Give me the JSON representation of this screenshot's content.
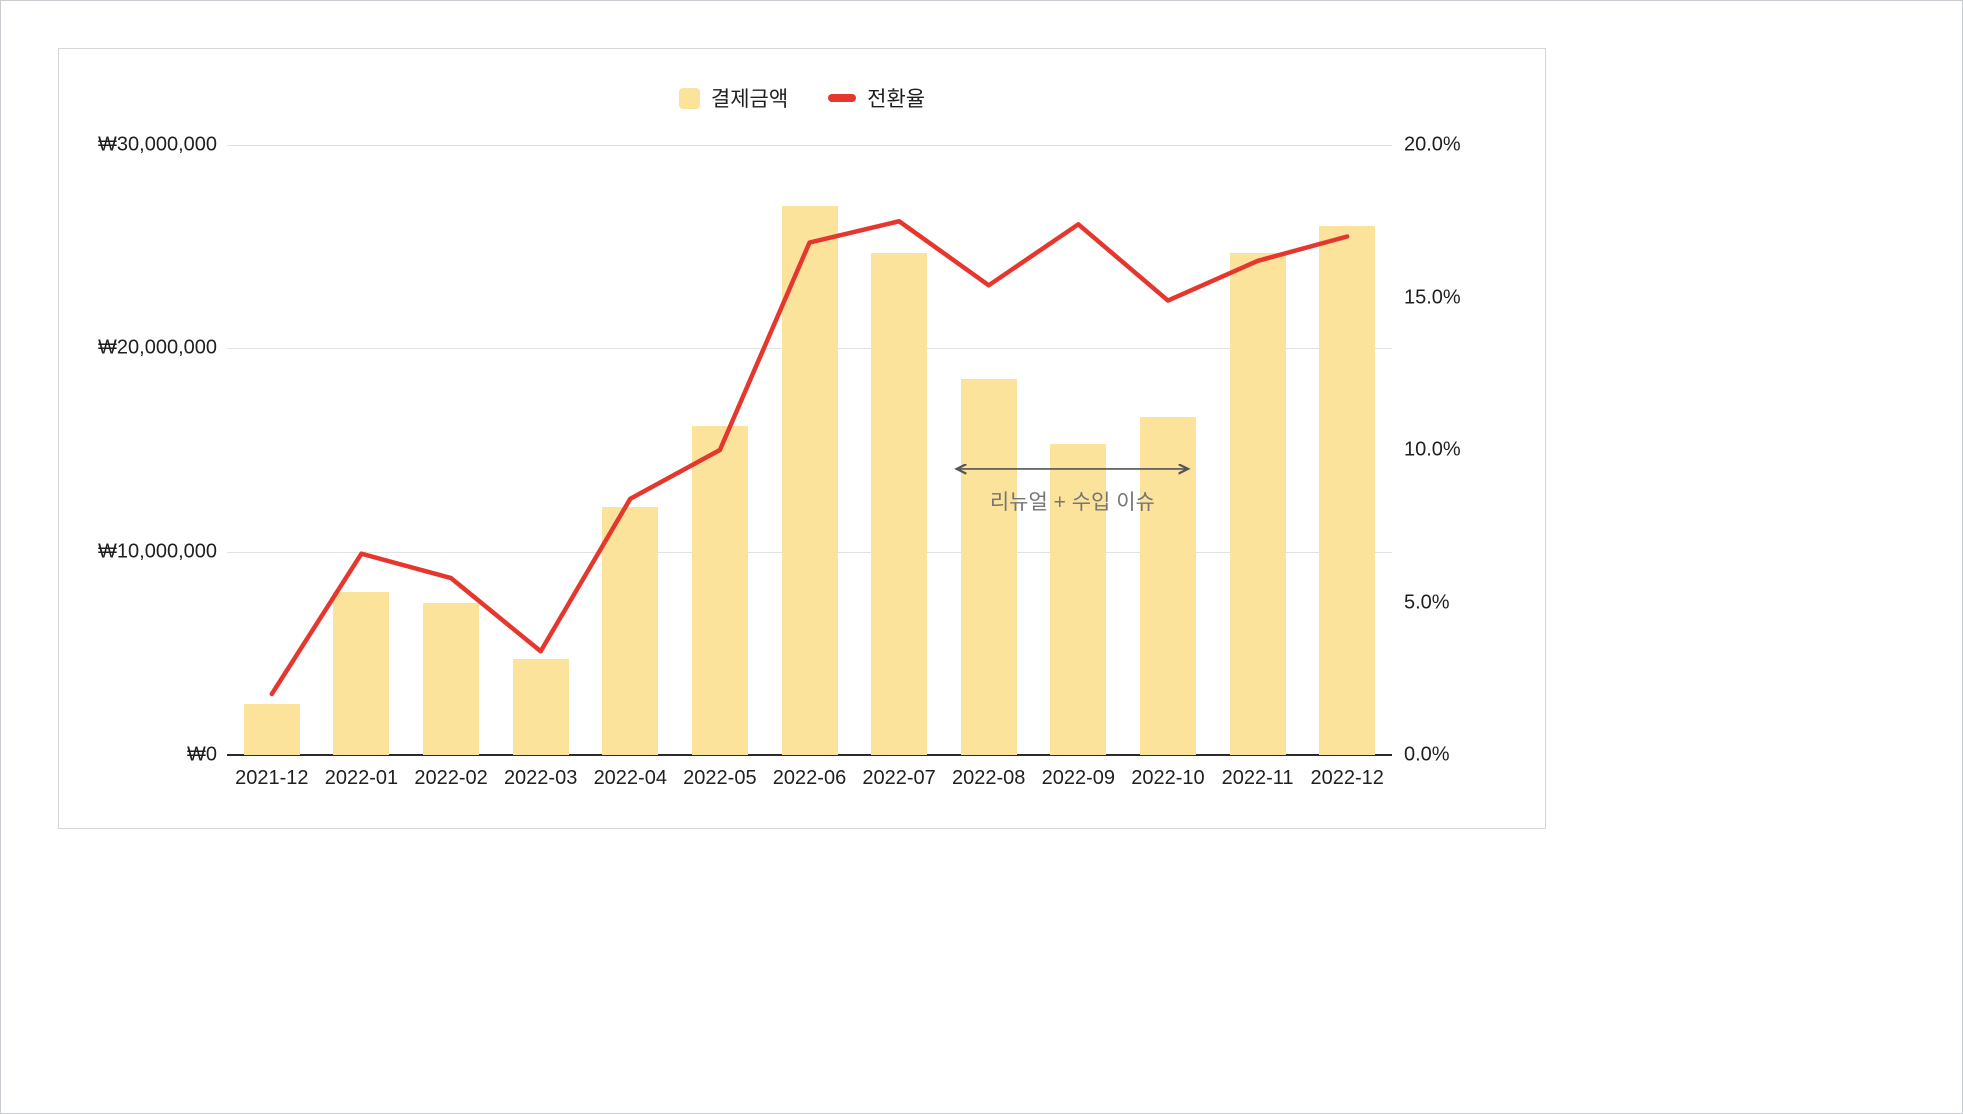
{
  "legend": {
    "payment_label": "결제금액",
    "conversion_label": "전환율"
  },
  "colors": {
    "bar": "#FCE39C",
    "line": "#E5372D",
    "grid": "#e2e2e2",
    "axis_text": "#1f1f1f",
    "annotation_line": "#555555",
    "annotation_text": "#757575"
  },
  "chart_data": {
    "type": "bar",
    "subtype": "bar+line combo",
    "categories": [
      "2021-12",
      "2022-01",
      "2022-02",
      "2022-03",
      "2022-04",
      "2022-05",
      "2022-06",
      "2022-07",
      "2022-08",
      "2022-09",
      "2022-10",
      "2022-11",
      "2022-12"
    ],
    "series": [
      {
        "name": "결제금액",
        "type": "bar",
        "axis": "left",
        "values": [
          2500000,
          8000000,
          7500000,
          4700000,
          12200000,
          16200000,
          27000000,
          24700000,
          18500000,
          15300000,
          16600000,
          24700000,
          26000000
        ]
      },
      {
        "name": "전환율",
        "type": "line",
        "axis": "right",
        "values": [
          2.0,
          6.6,
          5.8,
          3.4,
          8.4,
          10.0,
          16.8,
          17.5,
          15.4,
          17.4,
          14.9,
          16.2,
          17.0
        ]
      }
    ],
    "left_axis": {
      "min": 0,
      "max": 30000000,
      "ticks": [
        {
          "value": 0,
          "label": "₩0"
        },
        {
          "value": 10000000,
          "label": "₩10,000,000"
        },
        {
          "value": 20000000,
          "label": "₩20,000,000"
        },
        {
          "value": 30000000,
          "label": "₩30,000,000"
        }
      ]
    },
    "right_axis": {
      "min": 0,
      "max": 20,
      "ticks": [
        {
          "value": 0,
          "label": "0.0%"
        },
        {
          "value": 5,
          "label": "5.0%"
        },
        {
          "value": 10,
          "label": "10.0%"
        },
        {
          "value": 15,
          "label": "15.0%"
        },
        {
          "value": 20,
          "label": "20.0%"
        }
      ]
    },
    "annotation": {
      "text": "리뉴얼 + 수입 이슈",
      "from_category": "2022-08",
      "to_category": "2022-10"
    },
    "grid": true,
    "legend_position": "top-center"
  }
}
